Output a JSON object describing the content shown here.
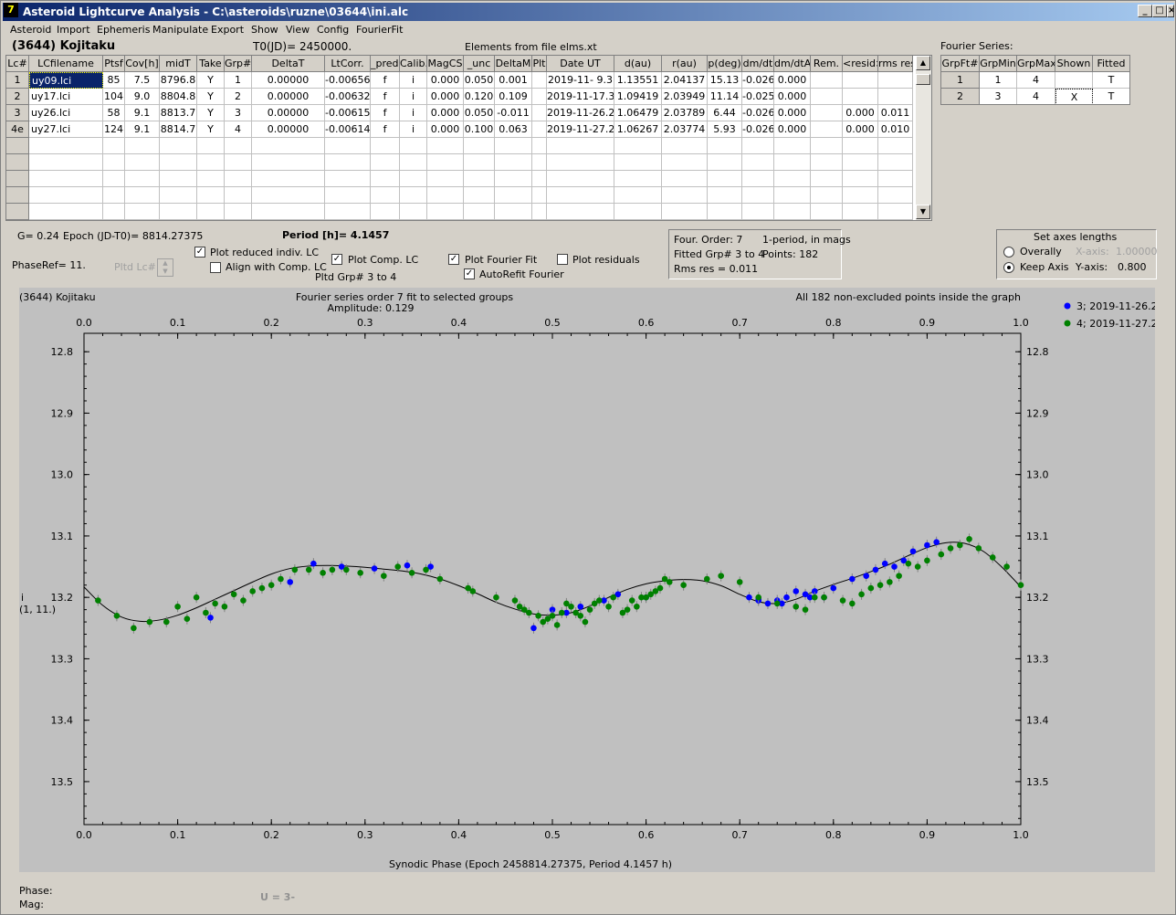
{
  "window": {
    "title": "Asteroid Lightcurve Analysis - C:\\asteroids\\ruzne\\03644\\ini.alc",
    "icon": "7"
  },
  "menu": [
    "Asteroid",
    "Import",
    "Ephemeris",
    "Manipulate",
    "Export",
    "Show",
    "View",
    "Config",
    "FourierFit"
  ],
  "header": {
    "asteroid": "(3644) Kojitaku",
    "t0": "T0(JD)= 2450000.",
    "elements": "Elements from file elms.xt",
    "fourier_label": "Fourier Series:"
  },
  "lc_table": {
    "columns": [
      "Lc#",
      "LCfilename",
      "Ptsf",
      "Cov[h]",
      "midT",
      "Take",
      "Grp#",
      "DeltaT",
      "LtCorr.",
      "_pred.",
      "Calib.",
      "MagCS",
      "_unc",
      "DeltaM",
      "Plt",
      "Date UT",
      "d(au)",
      "r(au)",
      "p(deg)",
      "dm/dt",
      "dm/dtA",
      "Rem.",
      "<resid>",
      "rms res"
    ],
    "rows": [
      [
        "1",
        "uy09.lci",
        "85",
        "7.5",
        "8796.8",
        "Y",
        "1",
        "0.00000",
        "-0.00656",
        "f",
        "i",
        "0.000",
        "0.050",
        "0.001",
        "",
        "2019-11- 9.3",
        "1.13551",
        "2.04137",
        "15.13",
        "-0.026",
        "0.000",
        "",
        "",
        ""
      ],
      [
        "2",
        "uy17.lci",
        "104",
        "9.0",
        "8804.8",
        "Y",
        "2",
        "0.00000",
        "-0.00632",
        "f",
        "i",
        "0.000",
        "0.120",
        "0.109",
        "",
        "2019-11-17.3",
        "1.09419",
        "2.03949",
        "11.14",
        "-0.025",
        "0.000",
        "",
        "",
        ""
      ],
      [
        "3",
        "uy26.lci",
        "58",
        "9.1",
        "8813.7",
        "Y",
        "3",
        "0.00000",
        "-0.00615",
        "f",
        "i",
        "0.000",
        "0.050",
        "-0.011",
        "",
        "2019-11-26.2",
        "1.06479",
        "2.03789",
        "6.44",
        "-0.026",
        "0.000",
        "",
        "0.000",
        "0.011"
      ],
      [
        "4e",
        "uy27.lci",
        "124",
        "9.1",
        "8814.7",
        "Y",
        "4",
        "0.00000",
        "-0.00614",
        "f",
        "i",
        "0.000",
        "0.100",
        "0.063",
        "",
        "2019-11-27.2",
        "1.06267",
        "2.03774",
        "5.93",
        "-0.026",
        "0.000",
        "",
        "0.000",
        "0.010"
      ]
    ]
  },
  "fourier_table": {
    "columns": [
      "GrpFt#",
      "GrpMin",
      "GrpMax",
      "Shown",
      "Fitted"
    ],
    "rows": [
      [
        "1",
        "1",
        "4",
        "",
        "T"
      ],
      [
        "2",
        "3",
        "4",
        "X",
        "T"
      ]
    ]
  },
  "info": {
    "g": "G= 0.24",
    "epoch": "Epoch (JD-T0)= 8814.27375",
    "period": "Period [h]= 4.1457",
    "phaseref": "PhaseRef= 11.",
    "pltd_lc": "Pltd Lc#:",
    "plot_reduced": "Plot reduced indiv. LC",
    "align_comp": "Align with Comp. LC",
    "plot_comp": "Plot Comp. LC",
    "pltd_grp": "Pltd Grp#  3   to   4",
    "plot_fourier": "Plot Fourier Fit",
    "autorefit": "AutoRefit Fourier",
    "plot_resid": "Plot residuals",
    "four_order": "Four. Order:  7",
    "one_period": "1-period, in mags",
    "fitted_grp": "Fitted Grp# 3 to 4",
    "points": "Points: 182",
    "rms": "Rms res     = 0.011",
    "axes_title": "Set axes lengths",
    "overally": "Overally",
    "keep_axis": "Keep Axis",
    "xaxis_lbl": "X-axis:",
    "xaxis_val": "1.00000",
    "yaxis_lbl": "Y-axis:",
    "yaxis_val": "0.800"
  },
  "chart_data": {
    "type": "scatter",
    "title": "Fourier series order 7 fit to selected groups",
    "subtitle": "Amplitude: 0.129",
    "top_left": "(3644) Kojitaku",
    "top_right": "All 182 non-excluded points inside the graph",
    "xlabel": "Synodic Phase (Epoch 2458814.27375, Period 4.1457 h)",
    "ylabel": "i",
    "ylabel2": "(1, 11.)",
    "xlim": [
      0,
      1.0
    ],
    "ylim": [
      13.57,
      12.77
    ],
    "x_ticks": [
      "0.0",
      "0.1",
      "0.2",
      "0.3",
      "0.4",
      "0.5",
      "0.6",
      "0.7",
      "0.8",
      "0.9",
      "1.0"
    ],
    "y_ticks": [
      "12.8",
      "12.9",
      "13.0",
      "13.1",
      "13.2",
      "13.3",
      "13.4",
      "13.5"
    ],
    "series": [
      {
        "name": "3; 2019-11-26.2",
        "color": "#0000ff",
        "x": [
          0.135,
          0.22,
          0.245,
          0.275,
          0.31,
          0.345,
          0.37,
          0.48,
          0.5,
          0.515,
          0.53,
          0.555,
          0.57,
          0.6,
          0.71,
          0.72,
          0.73,
          0.74,
          0.75,
          0.76,
          0.77,
          0.78,
          0.79,
          0.8,
          0.82,
          0.835,
          0.845,
          0.855,
          0.865,
          0.875,
          0.885,
          0.9,
          0.91,
          0.72,
          0.745,
          0.775
        ],
        "y": [
          13.233,
          13.175,
          13.145,
          13.15,
          13.153,
          13.148,
          13.15,
          13.25,
          13.22,
          13.225,
          13.215,
          13.205,
          13.195,
          13.2,
          13.2,
          13.203,
          13.21,
          13.205,
          13.2,
          13.19,
          13.195,
          13.19,
          13.2,
          13.185,
          13.17,
          13.165,
          13.155,
          13.145,
          13.15,
          13.14,
          13.125,
          13.115,
          13.11,
          13.205,
          13.21,
          13.2
        ]
      },
      {
        "name": "4; 2019-11-27.2",
        "color": "#008000",
        "x": [
          0.015,
          0.035,
          0.053,
          0.07,
          0.088,
          0.1,
          0.11,
          0.12,
          0.13,
          0.14,
          0.15,
          0.16,
          0.17,
          0.18,
          0.19,
          0.2,
          0.21,
          0.225,
          0.24,
          0.255,
          0.265,
          0.28,
          0.295,
          0.32,
          0.335,
          0.35,
          0.365,
          0.38,
          0.41,
          0.415,
          0.44,
          0.46,
          0.465,
          0.47,
          0.475,
          0.485,
          0.49,
          0.495,
          0.5,
          0.505,
          0.51,
          0.515,
          0.52,
          0.525,
          0.53,
          0.535,
          0.54,
          0.545,
          0.55,
          0.56,
          0.565,
          0.575,
          0.58,
          0.585,
          0.59,
          0.595,
          0.6,
          0.605,
          0.61,
          0.615,
          0.62,
          0.625,
          0.64,
          0.665,
          0.68,
          0.7,
          0.72,
          0.74,
          0.76,
          0.77,
          0.78,
          0.79,
          0.81,
          0.82,
          0.83,
          0.84,
          0.85,
          0.86,
          0.87,
          0.88,
          0.89,
          0.9,
          0.915,
          0.925,
          0.935,
          0.945,
          0.955,
          0.97,
          0.985,
          1.0
        ],
        "y": [
          13.205,
          13.23,
          13.25,
          13.24,
          13.24,
          13.215,
          13.235,
          13.2,
          13.225,
          13.21,
          13.215,
          13.195,
          13.205,
          13.19,
          13.185,
          13.18,
          13.17,
          13.155,
          13.155,
          13.16,
          13.155,
          13.155,
          13.16,
          13.165,
          13.15,
          13.16,
          13.155,
          13.17,
          13.185,
          13.19,
          13.2,
          13.205,
          13.215,
          13.22,
          13.225,
          13.23,
          13.24,
          13.235,
          13.23,
          13.245,
          13.225,
          13.21,
          13.215,
          13.225,
          13.23,
          13.24,
          13.22,
          13.21,
          13.205,
          13.215,
          13.2,
          13.225,
          13.22,
          13.205,
          13.215,
          13.2,
          13.2,
          13.195,
          13.19,
          13.185,
          13.17,
          13.175,
          13.18,
          13.17,
          13.165,
          13.175,
          13.2,
          13.21,
          13.215,
          13.22,
          13.2,
          13.2,
          13.205,
          13.21,
          13.195,
          13.185,
          13.18,
          13.175,
          13.165,
          13.145,
          13.15,
          13.14,
          13.13,
          13.12,
          13.115,
          13.105,
          13.12,
          13.135,
          13.15,
          13.18
        ]
      }
    ],
    "fit_curve": {
      "x": [
        0,
        0.02,
        0.04,
        0.06,
        0.08,
        0.1,
        0.12,
        0.14,
        0.16,
        0.18,
        0.2,
        0.22,
        0.24,
        0.26,
        0.28,
        0.3,
        0.32,
        0.34,
        0.36,
        0.38,
        0.4,
        0.42,
        0.44,
        0.46,
        0.48,
        0.5,
        0.52,
        0.54,
        0.56,
        0.58,
        0.6,
        0.62,
        0.64,
        0.66,
        0.68,
        0.7,
        0.72,
        0.74,
        0.76,
        0.78,
        0.8,
        0.82,
        0.84,
        0.86,
        0.88,
        0.9,
        0.92,
        0.94,
        0.96,
        0.98,
        1.0
      ],
      "y": [
        13.183,
        13.213,
        13.232,
        13.239,
        13.237,
        13.229,
        13.217,
        13.203,
        13.189,
        13.175,
        13.162,
        13.153,
        13.149,
        13.148,
        13.149,
        13.151,
        13.154,
        13.157,
        13.162,
        13.17,
        13.181,
        13.194,
        13.208,
        13.219,
        13.227,
        13.229,
        13.225,
        13.214,
        13.2,
        13.187,
        13.178,
        13.173,
        13.171,
        13.173,
        13.181,
        13.195,
        13.207,
        13.21,
        13.203,
        13.19,
        13.179,
        13.169,
        13.158,
        13.146,
        13.132,
        13.119,
        13.111,
        13.112,
        13.125,
        13.151,
        13.183
      ]
    }
  },
  "status": {
    "phase": "Phase:",
    "mag": "Mag:",
    "u": "U = 3-"
  }
}
